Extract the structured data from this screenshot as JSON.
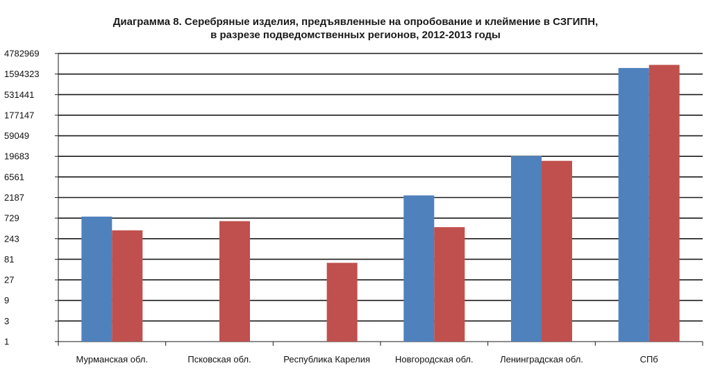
{
  "chart_data": {
    "type": "bar",
    "title_line1": "Диаграмма 8. Серебряные изделия, предъявленные на опробование и клеймение в СЗГИПН,",
    "title_line2": "в разрезе подведомственных регионов, 2012-2013 годы",
    "categories": [
      "Мурманская обл.",
      "Псковская обл.",
      "Республика Карелия",
      "Новгородская обл.",
      "Ленинградская обл.",
      "СПб"
    ],
    "scale": "log3",
    "ylim": [
      1,
      4782969
    ],
    "yticks": [
      "1",
      "3",
      "9",
      "27",
      "81",
      "243",
      "729",
      "2187",
      "6561",
      "19683",
      "59049",
      "177147",
      "531441",
      "1594323",
      "4782969"
    ],
    "grid": true,
    "series": [
      {
        "color": "#4f81bd",
        "values": [
          790,
          null,
          null,
          2450,
          20000,
          2200000
        ]
      },
      {
        "color": "#c0504d",
        "values": [
          380,
          620,
          67,
          450,
          15500,
          2600000
        ]
      }
    ]
  }
}
